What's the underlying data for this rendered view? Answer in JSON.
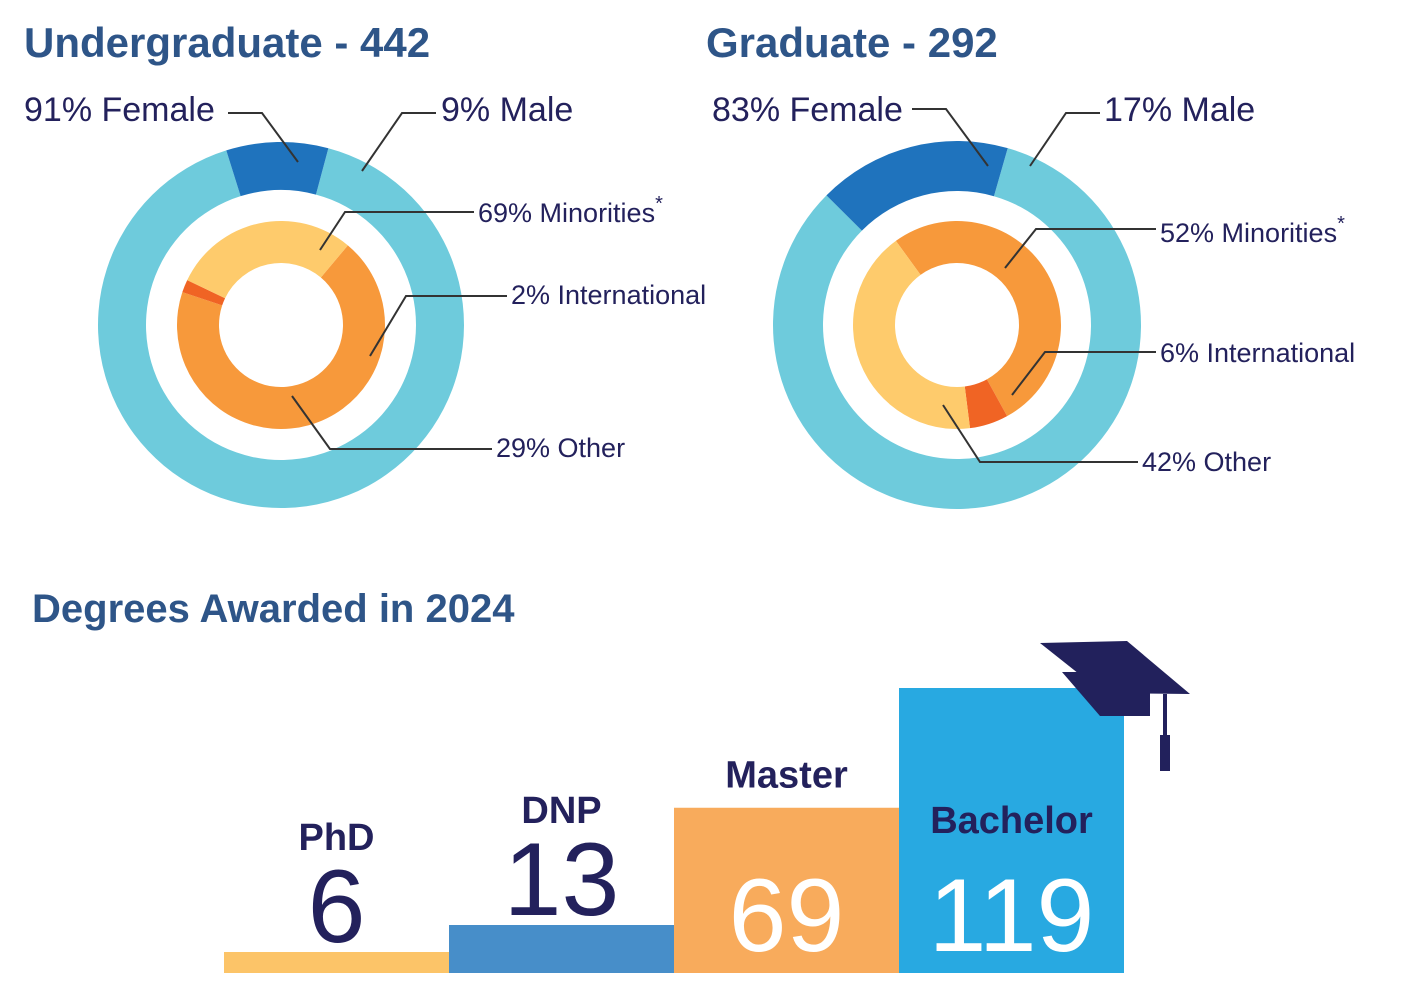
{
  "colors": {
    "female": "#6ecbdc",
    "male": "#1f73bd",
    "minorities": "#f7993b",
    "international": "#f06424",
    "other": "#fecb6c",
    "title": "#2e5588",
    "text": "#23215c",
    "cap": "#22215c"
  },
  "chart_data": [
    {
      "type": "pie",
      "title": "Undergraduate - 442",
      "outer_ring": {
        "slices": [
          {
            "label": "91% Female",
            "value": 91
          },
          {
            "label": "9% Male",
            "value": 9
          }
        ]
      },
      "inner_ring": {
        "slices": [
          {
            "label": "69% Minorities",
            "value": 69,
            "note": "*"
          },
          {
            "label": "2% International",
            "value": 2
          },
          {
            "label": "29% Other",
            "value": 29
          }
        ]
      }
    },
    {
      "type": "pie",
      "title": "Graduate - 292",
      "outer_ring": {
        "slices": [
          {
            "label": "83% Female",
            "value": 83
          },
          {
            "label": "17% Male",
            "value": 17
          }
        ]
      },
      "inner_ring": {
        "slices": [
          {
            "label": "52% Minorities",
            "value": 52,
            "note": "*"
          },
          {
            "label": "6% International",
            "value": 6
          },
          {
            "label": "42% Other",
            "value": 42
          }
        ]
      }
    },
    {
      "type": "bar",
      "title": "Degrees Awarded in 2024",
      "categories": [
        "PhD",
        "DNP",
        "Master",
        "Bachelor"
      ],
      "values": [
        6,
        13,
        69,
        119
      ],
      "bar_colors": [
        "#fcc468",
        "#478ec9",
        "#f8ab5c",
        "#28a9e1"
      ],
      "ylim": [
        0,
        119
      ]
    }
  ]
}
